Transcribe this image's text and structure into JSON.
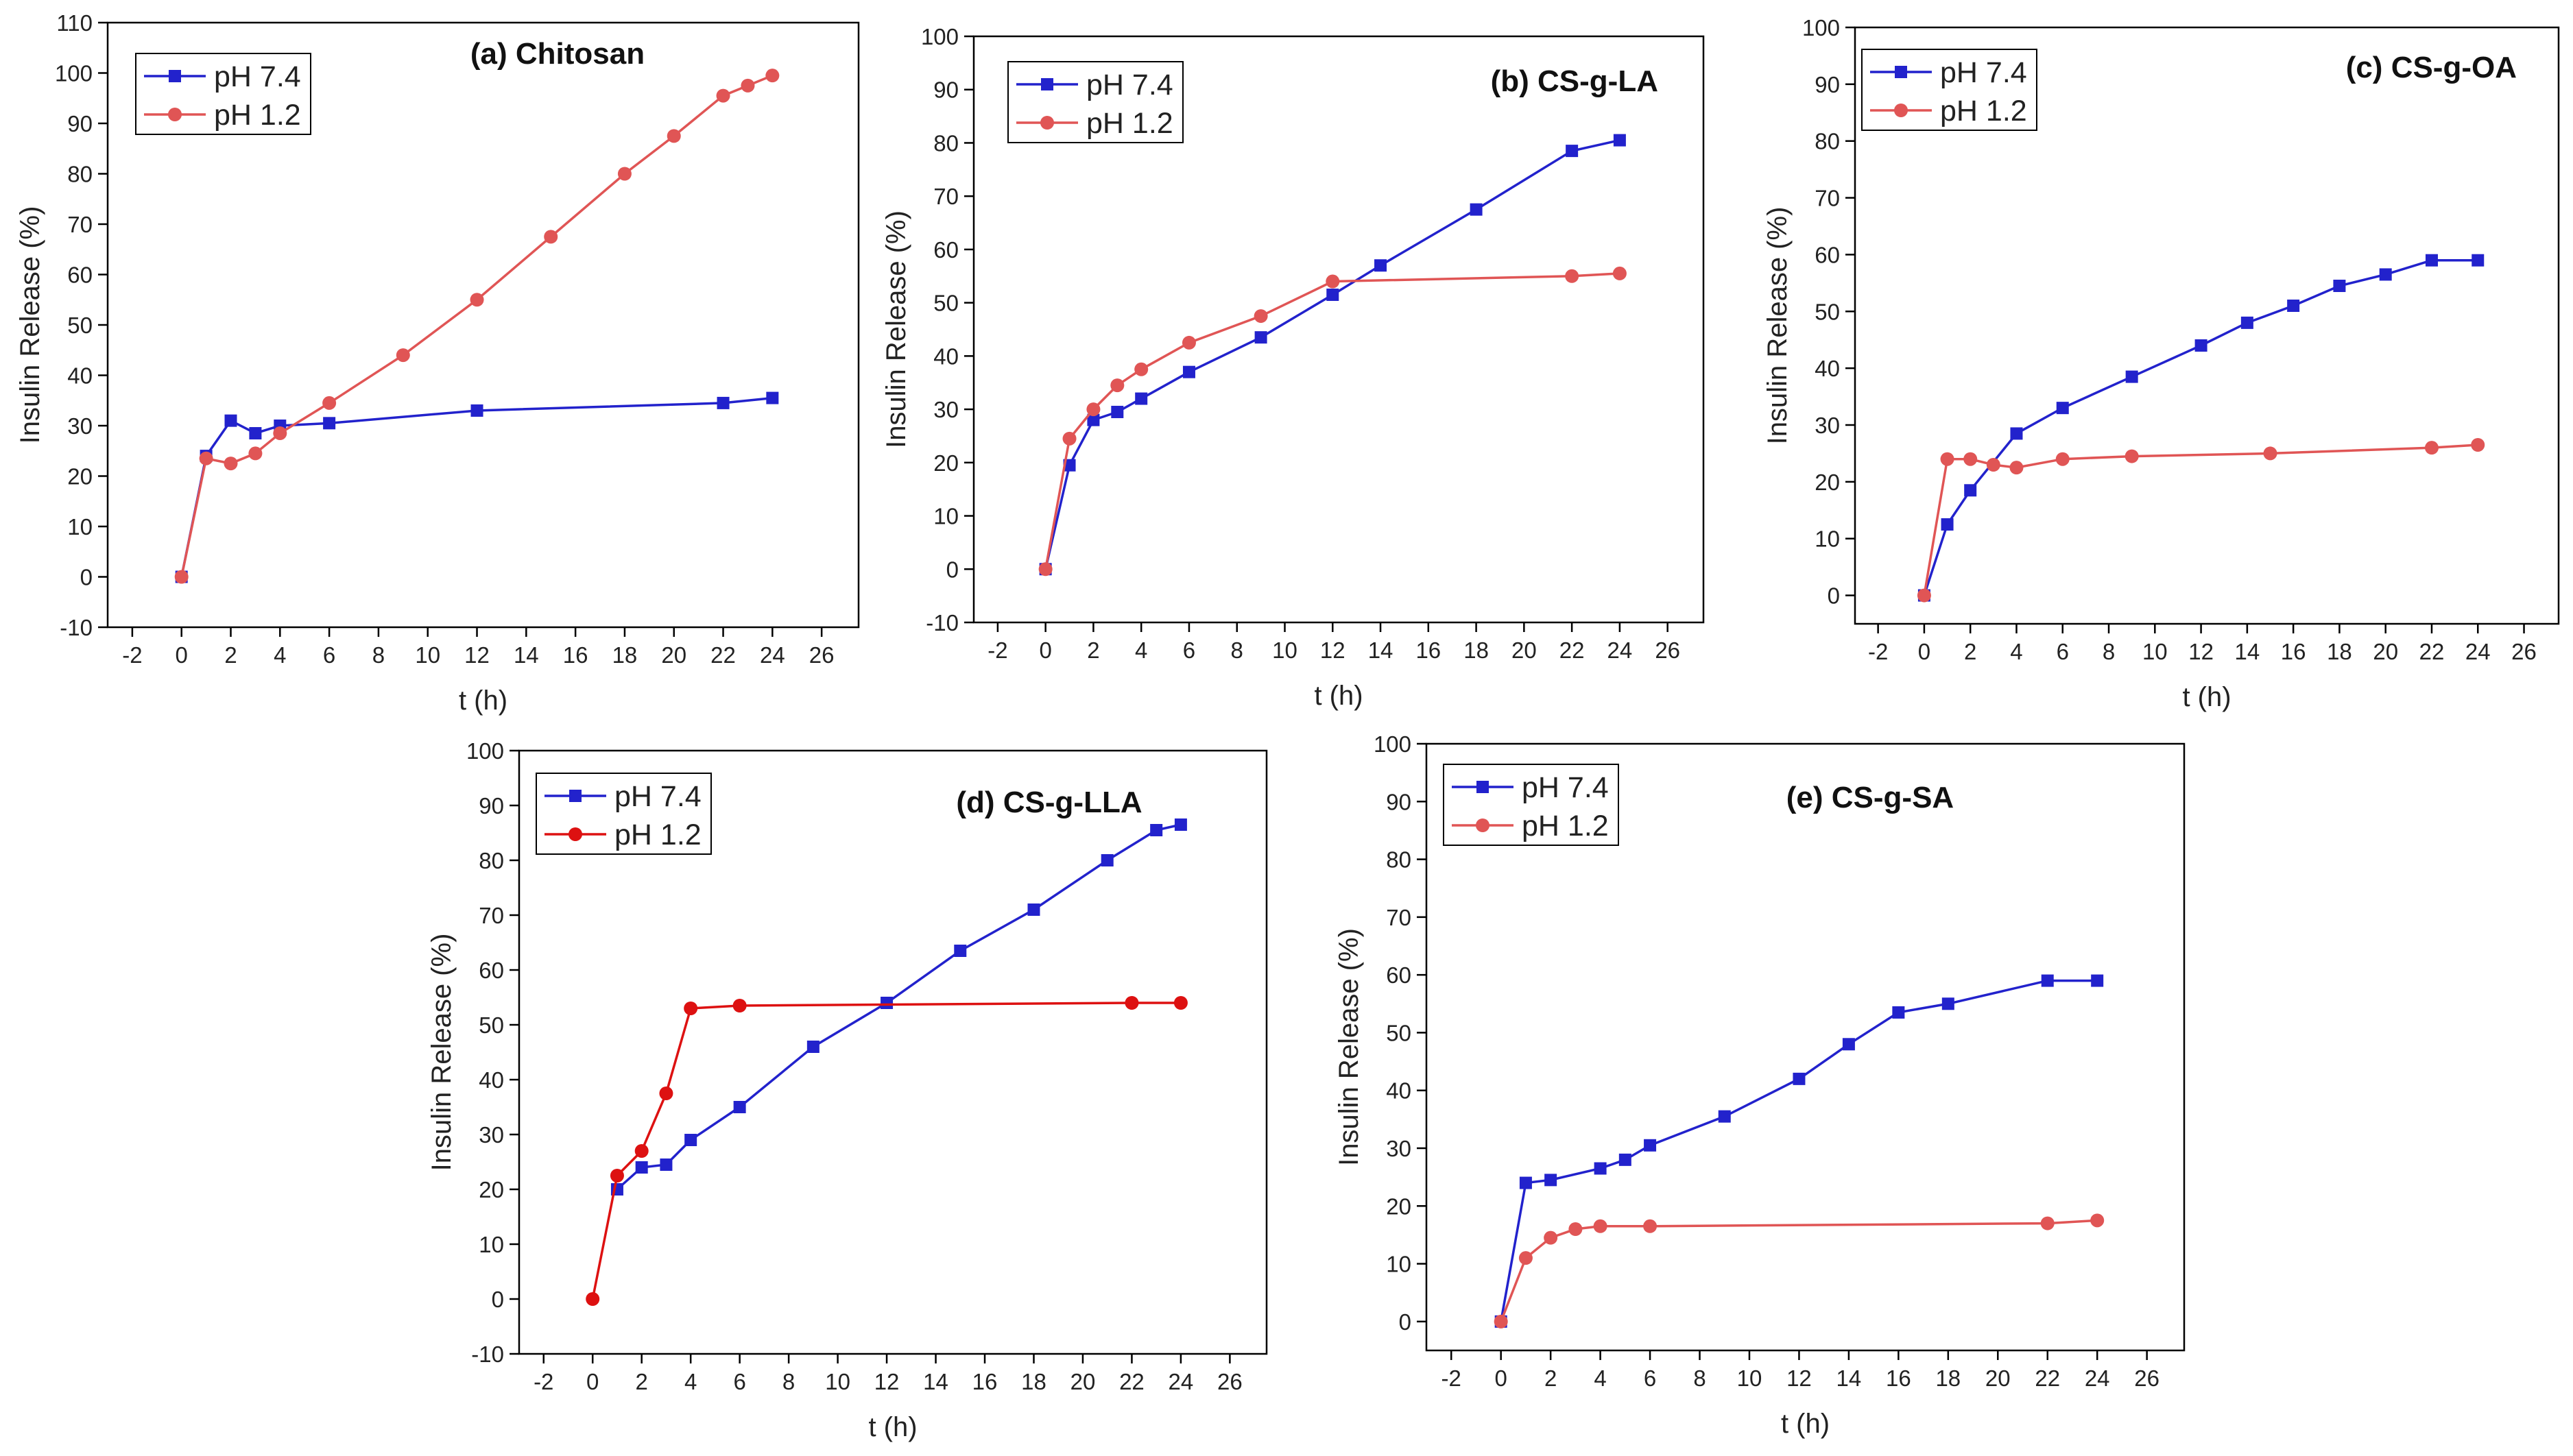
{
  "chart_data": [
    {
      "type": "line",
      "title": "(a) Chitosan",
      "xlabel": "t (h)",
      "ylabel": "Insulin Release (%)",
      "xlim": [
        -3,
        27.5
      ],
      "ylim": [
        -10,
        110
      ],
      "xticks": [
        "-2",
        "0",
        "2",
        "4",
        "6",
        "8",
        "10",
        "12",
        "14",
        "16",
        "18",
        "20",
        "22",
        "24",
        "26"
      ],
      "yticks": [
        "-10",
        "0",
        "10",
        "20",
        "30",
        "40",
        "50",
        "60",
        "70",
        "80",
        "90",
        "100",
        "110"
      ],
      "legend_position": "top-left",
      "series": [
        {
          "name": "pH 7.4",
          "color": "#2222cc",
          "marker": "square",
          "x": [
            0,
            1,
            2,
            3,
            4,
            6,
            12,
            22,
            24
          ],
          "y": [
            0,
            24,
            31,
            28.5,
            30,
            30.5,
            33,
            34.5,
            35.5
          ]
        },
        {
          "name": "pH 1.2",
          "color": "#e05555",
          "marker": "circle",
          "x": [
            0,
            1,
            2,
            3,
            4,
            6,
            9,
            12,
            15,
            18,
            20,
            22,
            23,
            24
          ],
          "y": [
            0,
            23.5,
            22.5,
            24.5,
            28.5,
            34.5,
            44,
            55,
            67.5,
            80,
            87.5,
            95.5,
            97.5,
            99.5
          ]
        }
      ]
    },
    {
      "type": "line",
      "title": "(b) CS-g-LA",
      "xlabel": "t (h)",
      "ylabel": "Insulin Release (%)",
      "xlim": [
        -3,
        27.5
      ],
      "ylim": [
        -10,
        100
      ],
      "xticks": [
        "-2",
        "0",
        "2",
        "4",
        "6",
        "8",
        "10",
        "12",
        "14",
        "16",
        "18",
        "20",
        "22",
        "24",
        "26"
      ],
      "yticks": [
        "-10",
        "0",
        "10",
        "20",
        "30",
        "40",
        "50",
        "60",
        "70",
        "80",
        "90",
        "100"
      ],
      "legend_position": "top-left",
      "series": [
        {
          "name": "pH 7.4",
          "color": "#2222cc",
          "marker": "square",
          "x": [
            0,
            1,
            2,
            3,
            4,
            6,
            9,
            12,
            14,
            18,
            22,
            24
          ],
          "y": [
            0,
            19.5,
            28,
            29.5,
            32,
            37,
            43.5,
            51.5,
            57,
            67.5,
            78.5,
            80.5
          ]
        },
        {
          "name": "pH 1.2",
          "color": "#e05555",
          "marker": "circle",
          "x": [
            0,
            1,
            2,
            3,
            4,
            6,
            9,
            12,
            22,
            24
          ],
          "y": [
            0,
            24.5,
            30,
            34.5,
            37.5,
            42.5,
            47.5,
            54,
            55,
            55.5
          ]
        }
      ]
    },
    {
      "type": "line",
      "title": "(c) CS-g-OA",
      "xlabel": "t (h)",
      "ylabel": "Insulin Release (%)",
      "xlim": [
        -3,
        27.5
      ],
      "ylim": [
        -5,
        100
      ],
      "xticks": [
        "-2",
        "0",
        "2",
        "4",
        "6",
        "8",
        "10",
        "12",
        "14",
        "16",
        "18",
        "20",
        "22",
        "24",
        "26"
      ],
      "yticks": [
        "0",
        "10",
        "20",
        "30",
        "40",
        "50",
        "60",
        "70",
        "80",
        "90",
        "100"
      ],
      "legend_position": "top-left",
      "series": [
        {
          "name": "pH 7.4",
          "color": "#2222cc",
          "marker": "square",
          "x": [
            0,
            1,
            2,
            4,
            6,
            9,
            12,
            14,
            16,
            18,
            20,
            22,
            24
          ],
          "y": [
            0,
            12.5,
            18.5,
            28.5,
            33,
            38.5,
            44,
            48,
            51,
            54.5,
            56.5,
            59,
            59
          ]
        },
        {
          "name": "pH 1.2",
          "color": "#e05555",
          "marker": "circle",
          "x": [
            0,
            1,
            2,
            3,
            4,
            6,
            9,
            15,
            22,
            24
          ],
          "y": [
            0,
            24,
            24,
            23,
            22.5,
            24,
            24.5,
            25,
            26,
            26.5
          ]
        }
      ]
    },
    {
      "type": "line",
      "title": "(d) CS-g-LLA",
      "xlabel": "t (h)",
      "ylabel": "Insulin Release (%)",
      "xlim": [
        -3,
        27.5
      ],
      "ylim": [
        -10,
        100
      ],
      "xticks": [
        "-2",
        "0",
        "2",
        "4",
        "6",
        "8",
        "10",
        "12",
        "14",
        "16",
        "18",
        "20",
        "22",
        "24",
        "26"
      ],
      "yticks": [
        "-10",
        "0",
        "10",
        "20",
        "30",
        "40",
        "50",
        "60",
        "70",
        "80",
        "90",
        "100"
      ],
      "legend_position": "top-left",
      "series": [
        {
          "name": "pH 7.4",
          "color": "#2222cc",
          "marker": "square",
          "x": [
            1,
            2,
            3,
            4,
            6,
            9,
            12,
            15,
            18,
            21,
            23,
            24
          ],
          "y": [
            20,
            24,
            24.5,
            29,
            35,
            46,
            54,
            63.5,
            71,
            80,
            85.5,
            86.5
          ]
        },
        {
          "name": "pH 1.2",
          "color": "#dd1111",
          "marker": "circle",
          "x": [
            0,
            1,
            2,
            3,
            4,
            6,
            22,
            24
          ],
          "y": [
            0,
            22.5,
            27,
            37.5,
            53,
            53.5,
            54,
            54
          ]
        }
      ]
    },
    {
      "type": "line",
      "title": "(e) CS-g-SA",
      "xlabel": "t (h)",
      "ylabel": "Insulin Release (%)",
      "xlim": [
        -3,
        27.5
      ],
      "ylim": [
        -5,
        100
      ],
      "xticks": [
        "-2",
        "0",
        "2",
        "4",
        "6",
        "8",
        "10",
        "12",
        "14",
        "16",
        "18",
        "20",
        "22",
        "24",
        "26"
      ],
      "yticks": [
        "0",
        "10",
        "20",
        "30",
        "40",
        "50",
        "60",
        "70",
        "80",
        "90",
        "100"
      ],
      "legend_position": "top-left",
      "series": [
        {
          "name": "pH 7.4",
          "color": "#2222cc",
          "marker": "square",
          "x": [
            0,
            1,
            2,
            4,
            5,
            6,
            9,
            12,
            14,
            16,
            18,
            22,
            24
          ],
          "y": [
            0,
            24,
            24.5,
            26.5,
            28,
            30.5,
            35.5,
            42,
            48,
            53.5,
            55,
            59,
            59
          ]
        },
        {
          "name": "pH 1.2",
          "color": "#e05555",
          "marker": "circle",
          "x": [
            0,
            1,
            2,
            3,
            4,
            6,
            22,
            24
          ],
          "y": [
            0,
            11,
            14.5,
            16,
            16.5,
            16.5,
            17,
            17.5
          ]
        }
      ]
    }
  ]
}
